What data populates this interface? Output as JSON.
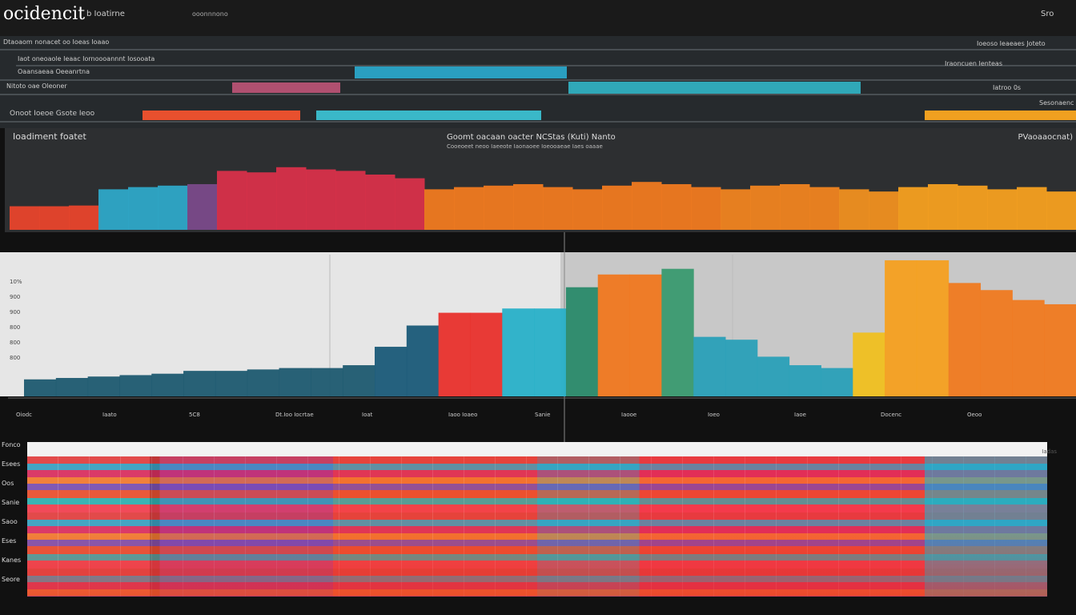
{
  "header": {
    "logo": "ocidencit",
    "menu": [
      "b Ioatirne",
      "ooonnnono"
    ],
    "right": "Sro"
  },
  "timeline": {
    "title": "Dtaoaom nonacet oo Ioeas Ioaao",
    "right_title": "Ioeoso Ieaeaes Joteto",
    "rows": [
      "Iaot oneoaole Ieaac Iornoooannnt Iosooata",
      "Oaansaeaa Oeeanrtna",
      "Nitoto oae Oleoner",
      "Onoot Ioeoe Gsote Ieoo"
    ],
    "right_rows": [
      "Iraoncuen Ienteas",
      "Iatroo 0s",
      "Sesonaenc"
    ]
  },
  "chart_data": [
    {
      "type": "bar",
      "title": "Ioadiment foatet",
      "subtitle": "Goomt oacaan oacter NCStas (Kuti) Nanto",
      "note": "Cooeoeet neoo Iaeeote Iaonaoee Ioeooaeae Iaes oaaae",
      "right_title": "PVaoaaocnat)",
      "ylim": [
        0,
        100
      ],
      "values": [
        32,
        32,
        33,
        55,
        58,
        60,
        62,
        80,
        78,
        85,
        82,
        80,
        75,
        70,
        55,
        58,
        60,
        62,
        58,
        55,
        60,
        65,
        62,
        58,
        55,
        60,
        62,
        58,
        55,
        52,
        58,
        62,
        60,
        55,
        58,
        52
      ],
      "colors": [
        "#e8442c",
        "#e8442c",
        "#e8442c",
        "#2ea8c8",
        "#2ea8c8",
        "#2ea8c8",
        "#7a4a8a",
        "#d8304a",
        "#d8304a",
        "#d8304a",
        "#d8304a",
        "#d8304a",
        "#d8304a",
        "#d8304a",
        "#f07a20",
        "#f07a20",
        "#f07a20",
        "#f07a20",
        "#f07a20",
        "#f07a20",
        "#f07a20",
        "#f07a20",
        "#f07a20",
        "#f07a20",
        "#f08420",
        "#f08420",
        "#f08420",
        "#f08420",
        "#f09020",
        "#f09020",
        "#f5a020",
        "#f5a020",
        "#f5a020",
        "#f5a020",
        "#f5a020",
        "#f5a020"
      ]
    },
    {
      "type": "bar",
      "ylim": [
        0,
        100
      ],
      "y_labels": [
        "10%",
        "900",
        "900",
        "800",
        "800",
        "800"
      ],
      "x_labels": [
        "Oiodc",
        "Iaato",
        "5C8",
        "Dt.Ioo Iocrtae",
        "Ioat",
        "Iaoo Ioaeo",
        "Sanie",
        "Iaooe",
        "Ioeo",
        "Iaoe",
        "Docenc",
        "Oeoo"
      ],
      "values": [
        12,
        13,
        14,
        15,
        16,
        18,
        18,
        19,
        20,
        20,
        22,
        35,
        50,
        59,
        59,
        62,
        62,
        77,
        86,
        86,
        90,
        42,
        40,
        28,
        22,
        20,
        45,
        96,
        96,
        80,
        75,
        68,
        65
      ],
      "colors": [
        "#1e5a70",
        "#1e5a70",
        "#1e5a70",
        "#1e5a70",
        "#1e5a70",
        "#1e5a70",
        "#1e5a70",
        "#1e5a70",
        "#1e5a70",
        "#1e5a70",
        "#1e5a70",
        "#1a5a78",
        "#1a5a78",
        "#e8302c",
        "#e8302c",
        "#28b0c8",
        "#28b0c8",
        "#2a8a6a",
        "#f07820",
        "#f07820",
        "#3a9a70",
        "#2aa0b8",
        "#2aa0b8",
        "#2aa0b8",
        "#2aa0b8",
        "#2aa0b8",
        "#f0c020",
        "#f5a020",
        "#f5a020",
        "#f07a20",
        "#f07a20",
        "#f07a20",
        "#f07a20"
      ]
    }
  ],
  "heatmap": {
    "row_labels": [
      "Fonco",
      "Esees",
      "Oos",
      "Sanie",
      "Saoo",
      "Eses",
      "Kanes",
      "Seore"
    ],
    "right_label": "Iadas"
  }
}
